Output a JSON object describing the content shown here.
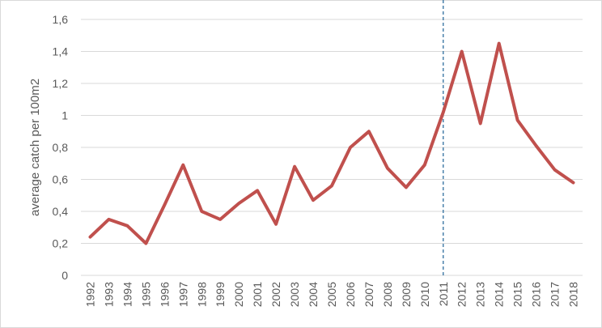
{
  "chart_data": {
    "type": "line",
    "title": "",
    "xlabel": "",
    "ylabel": "average catch per 100m2",
    "ylim": [
      0,
      1.6
    ],
    "yticks": [
      0,
      0.2,
      0.4,
      0.6,
      0.8,
      1.0,
      1.2,
      1.4,
      1.6
    ],
    "ytick_labels": [
      "0",
      "0,2",
      "0,4",
      "0,6",
      "0,8",
      "1",
      "1,2",
      "1,4",
      "1,6"
    ],
    "grid": true,
    "legend": "none",
    "categories": [
      "1992",
      "1993",
      "1994",
      "1995",
      "1996",
      "1997",
      "1998",
      "1999",
      "2000",
      "2001",
      "2002",
      "2003",
      "2004",
      "2005",
      "2006",
      "2007",
      "2008",
      "2009",
      "2010",
      "2011",
      "2012",
      "2013",
      "2014",
      "2015",
      "2016",
      "2017",
      "2018"
    ],
    "series": [
      {
        "values": [
          0.24,
          0.35,
          0.31,
          0.2,
          0.44,
          0.69,
          0.4,
          0.35,
          0.45,
          0.53,
          0.32,
          0.68,
          0.47,
          0.56,
          0.8,
          0.9,
          0.67,
          0.55,
          0.69,
          1.02,
          1.4,
          0.95,
          1.45,
          0.97,
          0.81,
          0.66,
          0.58
        ],
        "color": "#c0504d"
      }
    ],
    "reference_line": {
      "category": "2011",
      "style": "dashed",
      "color": "#2e6e9e"
    },
    "colors": {
      "grid": "#d9d9d9",
      "text": "#595959",
      "series": "#c0504d",
      "reference": "#2e6e9e"
    }
  }
}
